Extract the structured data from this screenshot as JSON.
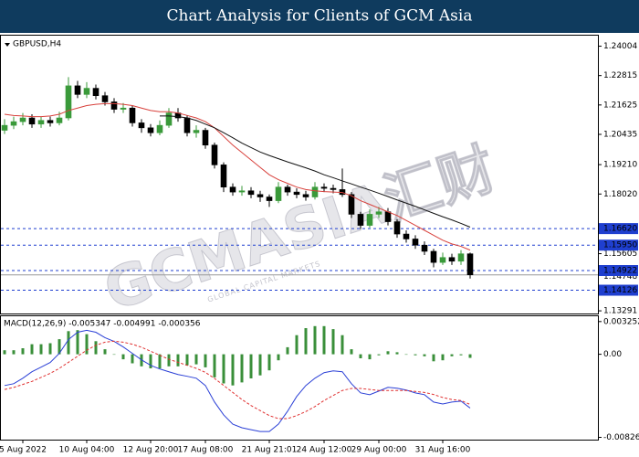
{
  "title": "Chart Analysis for Clients of GCM Asia",
  "watermark": "GCMASIA汇财",
  "watermark_sub": "GLOBAL CAPITAL MARKETS",
  "chart_data": [
    {
      "type": "candlestick",
      "title": "GBPUSD,H4",
      "categories": [
        null,
        null,
        "5 Aug 2022",
        null,
        null,
        null,
        null,
        null,
        null,
        "10 Aug 04:00",
        null,
        null,
        null,
        null,
        null,
        null,
        "12 Aug 20:00",
        null,
        null,
        null,
        null,
        null,
        "17 Aug 08:00",
        null,
        null,
        null,
        null,
        null,
        null,
        "21 Aug 21:01",
        null,
        null,
        null,
        null,
        null,
        "24 Aug 12:00",
        null,
        null,
        null,
        null,
        null,
        "29 Aug 00:00",
        null,
        null,
        null,
        null,
        null,
        null,
        "31 Aug 16:00",
        null,
        null,
        null
      ],
      "open": [
        1.206,
        1.208,
        1.2095,
        1.211,
        1.2085,
        1.21,
        1.209,
        1.211,
        1.224,
        1.2205,
        1.223,
        1.22,
        1.2175,
        1.2145,
        1.215,
        1.209,
        1.207,
        1.205,
        1.208,
        1.213,
        1.211,
        1.205,
        1.206,
        1.2,
        1.192,
        1.183,
        1.181,
        1.1815,
        1.18,
        1.179,
        1.1775,
        1.183,
        1.181,
        1.18,
        1.179,
        1.183,
        1.1825,
        1.182,
        1.18,
        1.172,
        1.1675,
        1.172,
        1.173,
        1.169,
        1.164,
        1.162,
        1.1595,
        1.157,
        1.1525,
        1.1545,
        1.153,
        1.156
      ],
      "high": [
        1.2105,
        1.2115,
        1.213,
        1.2125,
        1.2115,
        1.2115,
        1.2135,
        1.2275,
        1.226,
        1.2255,
        1.2245,
        1.2215,
        1.219,
        1.217,
        1.216,
        1.2105,
        1.2085,
        1.21,
        1.215,
        1.215,
        1.212,
        1.208,
        1.207,
        1.201,
        1.193,
        1.1845,
        1.1835,
        1.183,
        1.1815,
        1.18,
        1.185,
        1.184,
        1.1825,
        1.1815,
        1.185,
        1.1845,
        1.184,
        1.1905,
        1.181,
        1.173,
        1.174,
        1.175,
        1.1745,
        1.17,
        1.1655,
        1.1635,
        1.161,
        1.158,
        1.1565,
        1.156,
        1.1575,
        1.1565
      ],
      "low": [
        1.2045,
        1.2065,
        1.208,
        1.207,
        1.207,
        1.2075,
        1.208,
        1.21,
        1.219,
        1.219,
        1.2185,
        1.216,
        1.213,
        1.213,
        1.2075,
        1.205,
        1.2035,
        1.204,
        1.207,
        1.2095,
        1.2035,
        1.203,
        1.1985,
        1.1905,
        1.181,
        1.1795,
        1.1795,
        1.1785,
        1.177,
        1.175,
        1.1765,
        1.1795,
        1.1785,
        1.1775,
        1.178,
        1.181,
        1.1805,
        1.179,
        1.1705,
        1.166,
        1.1665,
        1.1705,
        1.1675,
        1.1625,
        1.1605,
        1.158,
        1.1555,
        1.1505,
        1.1515,
        1.1515,
        1.1515,
        1.146
      ],
      "close": [
        1.208,
        1.2095,
        1.211,
        1.2085,
        1.21,
        1.209,
        1.211,
        1.224,
        1.2205,
        1.223,
        1.22,
        1.2175,
        1.2145,
        1.215,
        1.209,
        1.207,
        1.205,
        1.208,
        1.213,
        1.211,
        1.205,
        1.206,
        1.2,
        1.192,
        1.183,
        1.181,
        1.1815,
        1.18,
        1.179,
        1.1775,
        1.183,
        1.181,
        1.18,
        1.179,
        1.183,
        1.1825,
        1.182,
        1.18,
        1.172,
        1.1675,
        1.172,
        1.173,
        1.169,
        1.164,
        1.162,
        1.1595,
        1.157,
        1.1525,
        1.1545,
        1.153,
        1.156,
        1.14748
      ],
      "up_color": "#3a9a3a",
      "down_color": "#000000",
      "series": [
        {
          "color": "#d8413c",
          "values": [
            1.2125,
            1.212,
            1.2118,
            1.2115,
            1.2115,
            1.2118,
            1.2125,
            1.214,
            1.215,
            1.216,
            1.2165,
            1.2168,
            1.2168,
            1.2165,
            1.216,
            1.215,
            1.214,
            1.2135,
            1.2135,
            1.213,
            1.212,
            1.211,
            1.2095,
            1.207,
            1.2035,
            1.2,
            1.197,
            1.194,
            1.191,
            1.188,
            1.186,
            1.1845,
            1.183,
            1.182,
            1.1815,
            1.1812,
            1.181,
            1.1808,
            1.1795,
            1.1775,
            1.176,
            1.1745,
            1.173,
            1.1715,
            1.1695,
            1.1675,
            1.1655,
            1.1635,
            1.1615,
            1.16,
            1.159,
            1.1575
          ]
        },
        {
          "color": "#111111",
          "values": [
            null,
            null,
            null,
            null,
            null,
            null,
            null,
            null,
            null,
            null,
            null,
            null,
            null,
            null,
            null,
            null,
            null,
            1.2118,
            1.2118,
            1.2115,
            1.211,
            1.21,
            1.2085,
            1.207,
            1.205,
            1.203,
            1.2008,
            1.199,
            1.1972,
            1.1958,
            1.1945,
            1.1932,
            1.192,
            1.1908,
            1.1895,
            1.188,
            1.1868,
            1.1855,
            1.1843,
            1.183,
            1.1818,
            1.1805,
            1.1792,
            1.1778,
            1.1765,
            1.1752,
            1.1738,
            1.1724,
            1.171,
            1.1697,
            1.1683,
            1.1668
          ]
        }
      ],
      "levels": [
        {
          "value": 1.1662,
          "label": "1.16620"
        },
        {
          "value": 1.1595,
          "label": "1.15950"
        },
        1.14922,
        1.14126
      ],
      "level_color": "#1f3fcf",
      "price_line": 1.14748,
      "ylim": [
        1.1322,
        1.2432
      ],
      "yticks": [
        1.24004,
        1.22815,
        1.21625,
        1.20435,
        {
          "value": 1.1921,
          "label": "1.19210"
        },
        {
          "value": 1.1802,
          "label": "1.18020"
        },
        1.15605,
        1.13291
      ]
    },
    {
      "type": "macd",
      "title": "MACD(12,26,9) -0.005347 -0.004991 -0.000356",
      "histogram": {
        "color": "#3a8f3a",
        "values": [
          0.0004,
          0.0004,
          0.0006,
          0.001,
          0.001,
          0.0011,
          0.0015,
          0.0023,
          0.0024,
          0.002,
          0.0013,
          0.0005,
          0.0,
          -0.0005,
          -0.0009,
          -0.0012,
          -0.0014,
          -0.0014,
          -0.0012,
          -0.0012,
          -0.0011,
          -0.001,
          -0.0013,
          -0.0023,
          -0.0029,
          -0.0031,
          -0.0028,
          -0.0024,
          -0.0021,
          -0.0016,
          -0.0006,
          0.0007,
          0.0019,
          0.0026,
          0.0028,
          0.0028,
          0.0025,
          0.0019,
          0.0005,
          -0.0004,
          -0.0005,
          -0.0001,
          0.0003,
          0.0002,
          0.0,
          -0.0001,
          -0.0002,
          -0.0007,
          -0.0006,
          -0.0002,
          -0.0001,
          -0.000356
        ]
      },
      "series": [
        {
          "color": "#2a3fd6",
          "dash": false,
          "values": [
            -0.00311,
            -0.00293,
            -0.00238,
            -0.00174,
            -0.00128,
            -0.00082,
            9e-05,
            0.00146,
            0.00219,
            0.00238,
            0.00219,
            0.00165,
            0.00128,
            0.00073,
            9e-05,
            -0.00055,
            -0.0011,
            -0.00146,
            -0.00174,
            -0.00201,
            -0.00219,
            -0.00238,
            -0.00311,
            -0.00475,
            -0.00603,
            -0.00695,
            -0.00731,
            -0.0075,
            -0.00768,
            -0.00768,
            -0.00695,
            -0.00567,
            -0.0042,
            -0.00311,
            -0.00238,
            -0.00183,
            -0.00165,
            -0.00174,
            -0.00293,
            -0.00384,
            -0.00402,
            -0.00366,
            -0.00329,
            -0.00338,
            -0.00356,
            -0.00384,
            -0.00402,
            -0.00475,
            -0.00494,
            -0.00475,
            -0.00466,
            -0.005347
          ]
        },
        {
          "color": "#e03030",
          "dash": true,
          "values": [
            -0.0035,
            -0.0033,
            -0.003,
            -0.0027,
            -0.0023,
            -0.0019,
            -0.0014,
            -0.0008,
            -0.0002,
            0.0004,
            0.0009,
            0.0012,
            0.0013,
            0.0012,
            0.001,
            0.0007,
            0.0003,
            -0.0001,
            -0.0005,
            -0.0008,
            -0.0011,
            -0.0014,
            -0.0018,
            -0.0024,
            -0.0031,
            -0.0038,
            -0.0045,
            -0.0051,
            -0.0056,
            -0.0061,
            -0.0064,
            -0.0064,
            -0.0061,
            -0.0057,
            -0.0052,
            -0.0046,
            -0.0041,
            -0.0036,
            -0.0034,
            -0.0034,
            -0.0035,
            -0.0036,
            -0.0036,
            -0.0036,
            -0.0036,
            -0.0037,
            -0.0038,
            -0.004,
            -0.0043,
            -0.0045,
            -0.0046,
            -0.004991
          ]
        }
      ],
      "ylim": [
        -0.0084,
        0.0036
      ],
      "yticks": [
        0.003252,
        {
          "value": 0,
          "label": "0.00"
        },
        -0.008265
      ]
    }
  ]
}
